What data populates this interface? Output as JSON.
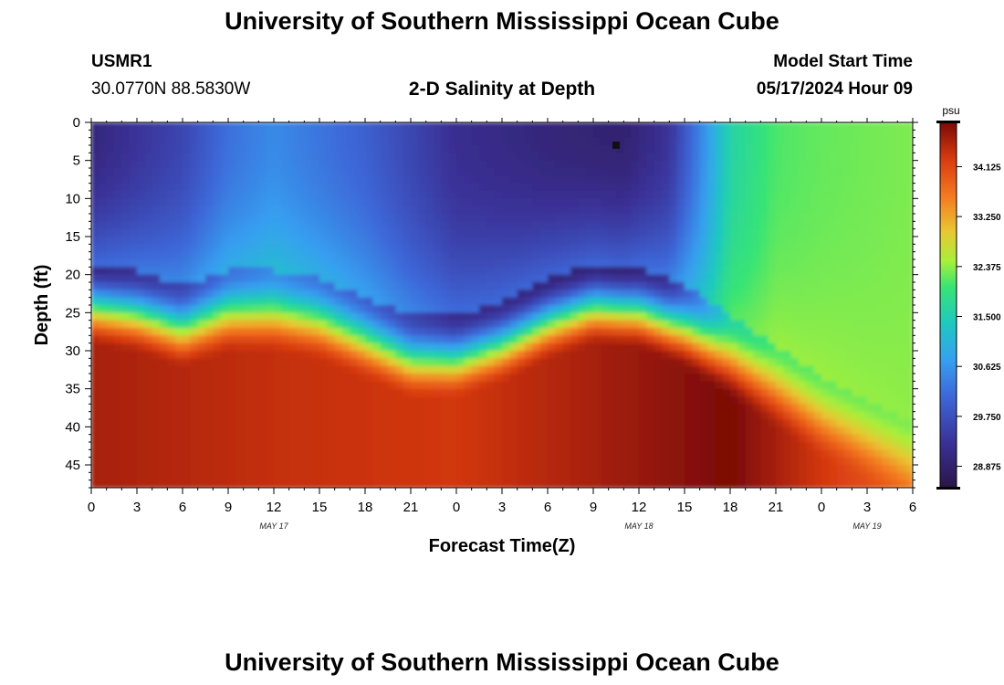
{
  "title_top": "University of Southern Mississippi Ocean Cube",
  "title_bottom": "University of Southern Mississippi Ocean Cube",
  "station": {
    "id": "USMR1",
    "coords": "30.0770N  88.5830W"
  },
  "plot_title": "2-D Salinity at Depth",
  "model_start": {
    "label": "Model Start Time",
    "value": "05/17/2024 Hour 09"
  },
  "chart_data": {
    "type": "heatmap",
    "title": "2-D Salinity at Depth",
    "xlabel": "Forecast Time(Z)",
    "ylabel": "Depth (ft)",
    "x_range_hours": [
      0,
      54
    ],
    "y_range_ft": [
      0,
      48
    ],
    "x_ticks": [
      "0",
      "3",
      "6",
      "9",
      "12",
      "15",
      "18",
      "21",
      "0",
      "3",
      "6",
      "9",
      "12",
      "15",
      "18",
      "21",
      "0",
      "3",
      "6"
    ],
    "date_labels": [
      {
        "label": "MAY 17",
        "hour": 12
      },
      {
        "label": "MAY 18",
        "hour": 36
      },
      {
        "label": "MAY 19",
        "hour": 51
      }
    ],
    "y_ticks": [
      "0",
      "5",
      "10",
      "15",
      "20",
      "25",
      "30",
      "35",
      "40",
      "45"
    ],
    "colorbar": {
      "unit": "psu",
      "min": 28.5,
      "max": 34.9,
      "ticks": [
        "34.125",
        "33.250",
        "32.375",
        "31.500",
        "30.625",
        "29.750",
        "28.875"
      ]
    },
    "marker": {
      "hour": 34.5,
      "depth_ft": 3,
      "label": "station depth marker"
    },
    "halocline_depth_ft": [
      {
        "hour": 0,
        "depth": 24
      },
      {
        "hour": 3,
        "depth": 25
      },
      {
        "hour": 6,
        "depth": 27
      },
      {
        "hour": 9,
        "depth": 25
      },
      {
        "hour": 12,
        "depth": 25
      },
      {
        "hour": 15,
        "depth": 26
      },
      {
        "hour": 18,
        "depth": 28.5
      },
      {
        "hour": 21,
        "depth": 31
      },
      {
        "hour": 24,
        "depth": 31
      },
      {
        "hour": 27,
        "depth": 29
      },
      {
        "hour": 30,
        "depth": 26
      },
      {
        "hour": 33,
        "depth": 24
      },
      {
        "hour": 36,
        "depth": 24.5
      },
      {
        "hour": 39,
        "depth": 27
      },
      {
        "hour": 42,
        "depth": 31
      },
      {
        "hour": 45,
        "depth": 35
      },
      {
        "hour": 48,
        "depth": 39
      },
      {
        "hour": 51,
        "depth": 42
      },
      {
        "hour": 54,
        "depth": 45
      }
    ],
    "surface_salinity_psu": [
      {
        "hour": 0,
        "value": 29.0
      },
      {
        "hour": 6,
        "value": 29.6
      },
      {
        "hour": 9,
        "value": 30.2
      },
      {
        "hour": 12,
        "value": 30.5
      },
      {
        "hour": 18,
        "value": 30.0
      },
      {
        "hour": 24,
        "value": 29.2
      },
      {
        "hour": 30,
        "value": 29.0
      },
      {
        "hour": 35,
        "value": 28.9
      },
      {
        "hour": 38,
        "value": 29.3
      },
      {
        "hour": 40,
        "value": 30.4
      },
      {
        "hour": 42,
        "value": 31.6
      },
      {
        "hour": 45,
        "value": 32.1
      },
      {
        "hour": 48,
        "value": 32.2
      },
      {
        "hour": 54,
        "value": 32.3
      }
    ],
    "bottom_salinity_psu": [
      {
        "hour": 0,
        "value": 34.6
      },
      {
        "hour": 12,
        "value": 34.4
      },
      {
        "hour": 24,
        "value": 34.3
      },
      {
        "hour": 36,
        "value": 34.7
      },
      {
        "hour": 42,
        "value": 34.9
      },
      {
        "hour": 48,
        "value": 34.3
      },
      {
        "hour": 54,
        "value": 33.8
      }
    ]
  }
}
